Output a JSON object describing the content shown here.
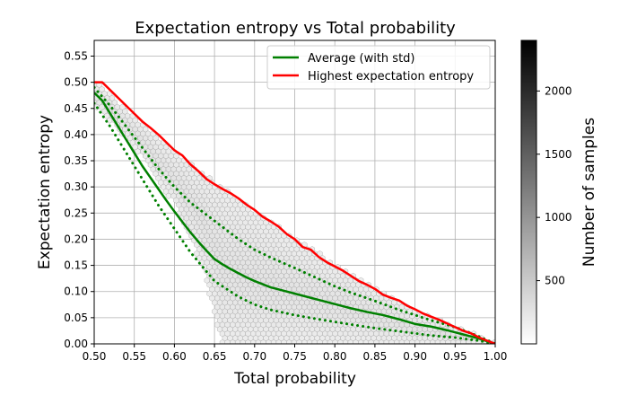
{
  "chart_data": {
    "type": "hexbin-line",
    "title": "Expectation entropy vs Total probability",
    "xlabel": "Total probability",
    "ylabel": "Expectation entropy",
    "xlim": [
      0.5,
      1.0
    ],
    "ylim": [
      0.0,
      0.58
    ],
    "grid": true,
    "xticks": [
      "0.50",
      "0.55",
      "0.60",
      "0.65",
      "0.70",
      "0.75",
      "0.80",
      "0.85",
      "0.90",
      "0.95",
      "1.00"
    ],
    "yticks": [
      "0.00",
      "0.05",
      "0.10",
      "0.15",
      "0.20",
      "0.25",
      "0.30",
      "0.35",
      "0.40",
      "0.45",
      "0.50",
      "0.55"
    ],
    "legend_position": "top-right",
    "colorbar": {
      "label": "Number of samples",
      "range": [
        0,
        2400
      ],
      "ticks": [
        "500",
        "1000",
        "1500",
        "2000"
      ],
      "tick_values": [
        500,
        1000,
        1500,
        2000
      ],
      "colormap": "Greys"
    },
    "hexbin_region": {
      "upper": [
        [
          0.5,
          0.5
        ],
        [
          0.6,
          0.365
        ],
        [
          0.7,
          0.25
        ],
        [
          0.8,
          0.15
        ],
        [
          0.9,
          0.06
        ],
        [
          1.0,
          0.0
        ]
      ],
      "lower": [
        [
          0.5,
          0.46
        ],
        [
          0.55,
          0.38
        ],
        [
          0.6,
          0.27
        ],
        [
          0.635,
          0.15
        ],
        [
          0.66,
          0.0
        ]
      ]
    },
    "series": [
      {
        "name": "Average (with std)",
        "color": "#008000",
        "style": "solid",
        "x": [
          0.5,
          0.51,
          0.52,
          0.53,
          0.54,
          0.55,
          0.56,
          0.57,
          0.58,
          0.59,
          0.6,
          0.61,
          0.62,
          0.63,
          0.64,
          0.65,
          0.66,
          0.67,
          0.68,
          0.69,
          0.7,
          0.72,
          0.74,
          0.76,
          0.78,
          0.8,
          0.82,
          0.84,
          0.86,
          0.88,
          0.9,
          0.92,
          0.94,
          0.96,
          0.98,
          1.0
        ],
        "y": [
          0.48,
          0.465,
          0.44,
          0.415,
          0.39,
          0.365,
          0.34,
          0.318,
          0.296,
          0.274,
          0.253,
          0.233,
          0.213,
          0.195,
          0.178,
          0.162,
          0.152,
          0.143,
          0.135,
          0.127,
          0.12,
          0.108,
          0.1,
          0.092,
          0.084,
          0.076,
          0.068,
          0.061,
          0.055,
          0.047,
          0.038,
          0.033,
          0.026,
          0.018,
          0.01,
          0.0
        ]
      },
      {
        "name": "Average + std",
        "color": "#008000",
        "style": "dotted",
        "legend": false,
        "x": [
          0.5,
          0.52,
          0.55,
          0.58,
          0.6,
          0.62,
          0.65,
          0.68,
          0.7,
          0.72,
          0.75,
          0.78,
          0.8,
          0.82,
          0.85,
          0.88,
          0.9,
          0.92,
          0.95,
          0.98,
          1.0
        ],
        "y": [
          0.49,
          0.455,
          0.395,
          0.335,
          0.3,
          0.27,
          0.235,
          0.2,
          0.18,
          0.165,
          0.145,
          0.124,
          0.11,
          0.098,
          0.082,
          0.065,
          0.055,
          0.045,
          0.032,
          0.014,
          0.0
        ]
      },
      {
        "name": "Average - std",
        "color": "#008000",
        "style": "dotted",
        "legend": false,
        "x": [
          0.5,
          0.52,
          0.55,
          0.58,
          0.6,
          0.62,
          0.65,
          0.68,
          0.7,
          0.72,
          0.75,
          0.78,
          0.8,
          0.82,
          0.85,
          0.88,
          0.9,
          0.92,
          0.95,
          0.98,
          1.0
        ],
        "y": [
          0.46,
          0.415,
          0.34,
          0.265,
          0.22,
          0.175,
          0.12,
          0.09,
          0.075,
          0.065,
          0.055,
          0.047,
          0.042,
          0.037,
          0.03,
          0.024,
          0.02,
          0.016,
          0.012,
          0.006,
          0.0
        ]
      },
      {
        "name": "Highest expectation entropy",
        "color": "#ff0000",
        "style": "solid",
        "x": [
          0.5,
          0.51,
          0.52,
          0.53,
          0.54,
          0.55,
          0.56,
          0.57,
          0.58,
          0.59,
          0.6,
          0.61,
          0.62,
          0.63,
          0.64,
          0.65,
          0.66,
          0.67,
          0.68,
          0.69,
          0.7,
          0.71,
          0.72,
          0.73,
          0.74,
          0.75,
          0.76,
          0.77,
          0.78,
          0.79,
          0.8,
          0.81,
          0.82,
          0.83,
          0.84,
          0.85,
          0.86,
          0.87,
          0.88,
          0.89,
          0.9,
          0.91,
          0.92,
          0.93,
          0.94,
          0.95,
          0.96,
          0.97,
          0.98,
          0.99,
          1.0
        ],
        "y": [
          0.5,
          0.5,
          0.485,
          0.47,
          0.455,
          0.44,
          0.425,
          0.413,
          0.4,
          0.385,
          0.37,
          0.36,
          0.343,
          0.33,
          0.315,
          0.305,
          0.296,
          0.288,
          0.278,
          0.266,
          0.256,
          0.243,
          0.234,
          0.224,
          0.21,
          0.2,
          0.185,
          0.18,
          0.166,
          0.156,
          0.148,
          0.14,
          0.13,
          0.12,
          0.113,
          0.105,
          0.094,
          0.088,
          0.083,
          0.073,
          0.066,
          0.058,
          0.052,
          0.046,
          0.039,
          0.032,
          0.025,
          0.02,
          0.012,
          0.006,
          0.0
        ]
      }
    ]
  }
}
